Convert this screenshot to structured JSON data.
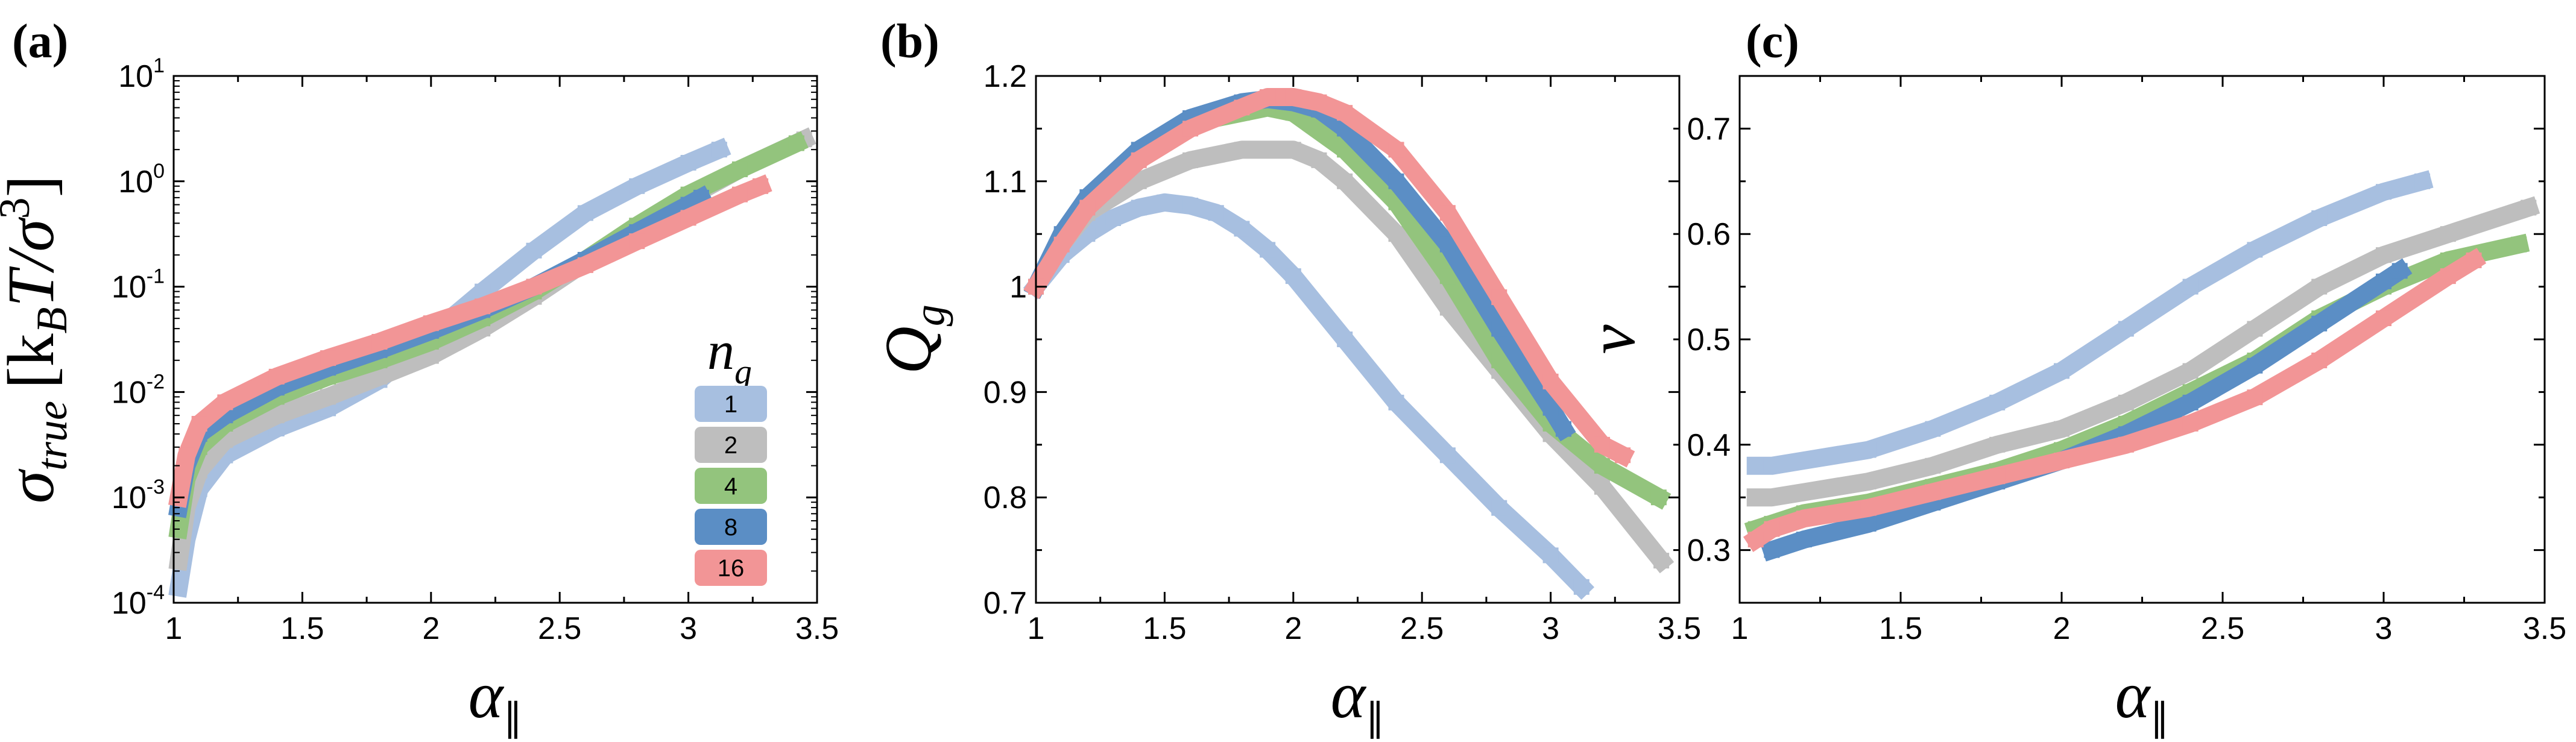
{
  "colors": {
    "1": "#a7bfe0",
    "2": "#bebebe",
    "4": "#93c47d",
    "8": "#5b8ec5",
    "16": "#f29596"
  },
  "legend": {
    "title": "n_g",
    "title_main": "n",
    "title_sub": "g",
    "entries": [
      "1",
      "2",
      "4",
      "8",
      "16"
    ]
  },
  "chart_data": [
    {
      "panel": "(a)",
      "type": "line",
      "xlabel": "α_∥",
      "xlabel_main": "α",
      "xlabel_sub": "∥",
      "ylabel": "σ_true [k_B T/σ^3]",
      "ylabel_main": "σ",
      "ylabel_sub": "true",
      "ylabel_bracket": "[k",
      "ylabel_sub2": "B",
      "ylabel_rest": "T/σ",
      "ylabel_sup": "3",
      "ylabel_close": "]",
      "yscale": "log",
      "xlim": [
        1,
        3.5
      ],
      "ylim": [
        0.0001,
        10
      ],
      "xticks": [
        "1",
        "1.5",
        "2",
        "2.5",
        "3",
        "3.5"
      ],
      "yticks": [
        {
          "base": "10",
          "exp": "-4"
        },
        {
          "base": "10",
          "exp": "-3"
        },
        {
          "base": "10",
          "exp": "-2"
        },
        {
          "base": "10",
          "exp": "-1"
        },
        {
          "base": "10",
          "exp": "0"
        },
        {
          "base": "10",
          "exp": "1"
        }
      ],
      "series": [
        {
          "name": "1",
          "x": [
            1.02,
            1.05,
            1.1,
            1.2,
            1.4,
            1.6,
            1.8,
            2.0,
            2.2,
            2.4,
            2.6,
            2.8,
            3.0,
            3.12
          ],
          "y": [
            0.00014,
            0.0004,
            0.0012,
            0.0025,
            0.0045,
            0.007,
            0.013,
            0.035,
            0.09,
            0.22,
            0.5,
            0.9,
            1.5,
            2.0
          ]
        },
        {
          "name": "2",
          "x": [
            1.02,
            1.05,
            1.1,
            1.2,
            1.4,
            1.6,
            1.8,
            2.0,
            2.2,
            2.4,
            2.6,
            2.8,
            3.0,
            3.2,
            3.45
          ],
          "y": [
            0.00025,
            0.0008,
            0.0018,
            0.0035,
            0.006,
            0.009,
            0.014,
            0.022,
            0.04,
            0.08,
            0.17,
            0.35,
            0.7,
            1.3,
            2.5
          ]
        },
        {
          "name": "4",
          "x": [
            1.02,
            1.05,
            1.1,
            1.2,
            1.4,
            1.6,
            1.8,
            2.0,
            2.2,
            2.4,
            2.6,
            2.8,
            3.0,
            3.2,
            3.42
          ],
          "y": [
            0.0005,
            0.0015,
            0.003,
            0.005,
            0.009,
            0.014,
            0.02,
            0.03,
            0.05,
            0.09,
            0.18,
            0.38,
            0.75,
            1.3,
            2.3
          ]
        },
        {
          "name": "8",
          "x": [
            1.02,
            1.05,
            1.1,
            1.2,
            1.4,
            1.6,
            1.8,
            2.0,
            2.2,
            2.4,
            2.6,
            2.8,
            3.0,
            3.05
          ],
          "y": [
            0.0008,
            0.002,
            0.004,
            0.006,
            0.011,
            0.017,
            0.025,
            0.038,
            0.06,
            0.1,
            0.18,
            0.33,
            0.6,
            0.7
          ]
        },
        {
          "name": "16",
          "x": [
            1.02,
            1.05,
            1.1,
            1.2,
            1.4,
            1.6,
            1.8,
            2.0,
            2.2,
            2.4,
            2.6,
            2.8,
            3.0,
            3.2,
            3.28
          ],
          "y": [
            0.001,
            0.0025,
            0.005,
            0.008,
            0.014,
            0.021,
            0.03,
            0.045,
            0.065,
            0.1,
            0.16,
            0.27,
            0.45,
            0.75,
            0.9
          ]
        }
      ]
    },
    {
      "panel": "(b)",
      "type": "line",
      "xlabel": "α_∥",
      "xlabel_main": "α",
      "xlabel_sub": "∥",
      "ylabel": "Q_g",
      "ylabel_main": "Q",
      "ylabel_sub": "g",
      "yscale": "linear",
      "xlim": [
        1,
        3.5
      ],
      "ylim": [
        0.7,
        1.2
      ],
      "xticks": [
        "1",
        "1.5",
        "2",
        "2.5",
        "3",
        "3.5"
      ],
      "yticks": [
        "0.7",
        "0.8",
        "0.9",
        "1",
        "1.1",
        "1.2"
      ],
      "series": [
        {
          "name": "1",
          "x": [
            1.0,
            1.1,
            1.2,
            1.3,
            1.4,
            1.5,
            1.6,
            1.7,
            1.8,
            1.9,
            2.0,
            2.2,
            2.4,
            2.6,
            2.8,
            3.0,
            3.12
          ],
          "y": [
            1.0,
            1.03,
            1.05,
            1.065,
            1.075,
            1.08,
            1.077,
            1.07,
            1.055,
            1.035,
            1.01,
            0.95,
            0.89,
            0.84,
            0.79,
            0.745,
            0.715
          ]
        },
        {
          "name": "2",
          "x": [
            1.0,
            1.1,
            1.2,
            1.4,
            1.6,
            1.8,
            2.0,
            2.1,
            2.2,
            2.4,
            2.6,
            2.8,
            3.0,
            3.2,
            3.43
          ],
          "y": [
            1.0,
            1.04,
            1.07,
            1.1,
            1.12,
            1.13,
            1.13,
            1.12,
            1.1,
            1.05,
            0.98,
            0.92,
            0.86,
            0.81,
            0.74
          ]
        },
        {
          "name": "4",
          "x": [
            1.0,
            1.1,
            1.2,
            1.4,
            1.6,
            1.8,
            1.9,
            2.0,
            2.2,
            2.4,
            2.6,
            2.8,
            3.0,
            3.2,
            3.42
          ],
          "y": [
            1.0,
            1.045,
            1.08,
            1.125,
            1.155,
            1.165,
            1.17,
            1.165,
            1.13,
            1.08,
            1.01,
            0.93,
            0.87,
            0.83,
            0.8
          ]
        },
        {
          "name": "8",
          "x": [
            1.0,
            1.1,
            1.2,
            1.4,
            1.6,
            1.8,
            1.9,
            2.0,
            2.1,
            2.2,
            2.4,
            2.6,
            2.8,
            3.0,
            3.05
          ],
          "y": [
            1.0,
            1.05,
            1.085,
            1.13,
            1.16,
            1.175,
            1.178,
            1.175,
            1.168,
            1.15,
            1.1,
            1.04,
            0.96,
            0.885,
            0.865
          ]
        },
        {
          "name": "16",
          "x": [
            1.0,
            1.1,
            1.2,
            1.4,
            1.6,
            1.8,
            1.9,
            2.0,
            2.1,
            2.2,
            2.4,
            2.6,
            2.8,
            3.0,
            3.2,
            3.28
          ],
          "y": [
            1.0,
            1.04,
            1.075,
            1.12,
            1.15,
            1.17,
            1.18,
            1.18,
            1.175,
            1.165,
            1.13,
            1.07,
            0.99,
            0.91,
            0.85,
            0.84
          ]
        }
      ]
    },
    {
      "panel": "(c)",
      "type": "line",
      "xlabel": "α_∥",
      "xlabel_main": "α",
      "xlabel_sub": "∥",
      "ylabel": "ν",
      "ylabel_main": "ν",
      "yscale": "linear",
      "xlim": [
        1,
        3.5
      ],
      "ylim": [
        0.25,
        0.75
      ],
      "xticks": [
        "1",
        "1.5",
        "2",
        "2.5",
        "3",
        "3.5"
      ],
      "yticks": [
        "0.3",
        "0.4",
        "0.5",
        "0.6",
        "0.7"
      ],
      "series": [
        {
          "name": "1",
          "x": [
            1.05,
            1.1,
            1.2,
            1.4,
            1.6,
            1.8,
            2.0,
            2.2,
            2.4,
            2.6,
            2.8,
            3.0,
            3.12
          ],
          "y": [
            0.38,
            0.38,
            0.385,
            0.395,
            0.415,
            0.44,
            0.47,
            0.51,
            0.55,
            0.585,
            0.615,
            0.64,
            0.65
          ]
        },
        {
          "name": "2",
          "x": [
            1.05,
            1.1,
            1.2,
            1.4,
            1.6,
            1.8,
            2.0,
            2.2,
            2.4,
            2.6,
            2.8,
            3.0,
            3.2,
            3.45
          ],
          "y": [
            0.35,
            0.35,
            0.355,
            0.365,
            0.38,
            0.4,
            0.415,
            0.44,
            0.47,
            0.51,
            0.55,
            0.58,
            0.6,
            0.625
          ]
        },
        {
          "name": "4",
          "x": [
            1.05,
            1.1,
            1.2,
            1.4,
            1.6,
            1.8,
            2.0,
            2.2,
            2.4,
            2.6,
            2.8,
            3.0,
            3.2,
            3.42
          ],
          "y": [
            0.32,
            0.325,
            0.335,
            0.345,
            0.36,
            0.375,
            0.395,
            0.42,
            0.45,
            0.48,
            0.52,
            0.55,
            0.575,
            0.59
          ]
        },
        {
          "name": "8",
          "x": [
            1.1,
            1.2,
            1.4,
            1.6,
            1.8,
            2.0,
            2.2,
            2.4,
            2.6,
            2.8,
            3.0,
            3.05
          ],
          "y": [
            0.3,
            0.31,
            0.325,
            0.345,
            0.365,
            0.385,
            0.41,
            0.44,
            0.475,
            0.515,
            0.555,
            0.565
          ]
        },
        {
          "name": "16",
          "x": [
            1.05,
            1.1,
            1.2,
            1.4,
            1.6,
            1.8,
            2.0,
            2.2,
            2.4,
            2.6,
            2.8,
            3.0,
            3.2,
            3.28
          ],
          "y": [
            0.31,
            0.32,
            0.33,
            0.34,
            0.355,
            0.37,
            0.385,
            0.4,
            0.42,
            0.445,
            0.48,
            0.52,
            0.56,
            0.575
          ]
        }
      ]
    }
  ]
}
